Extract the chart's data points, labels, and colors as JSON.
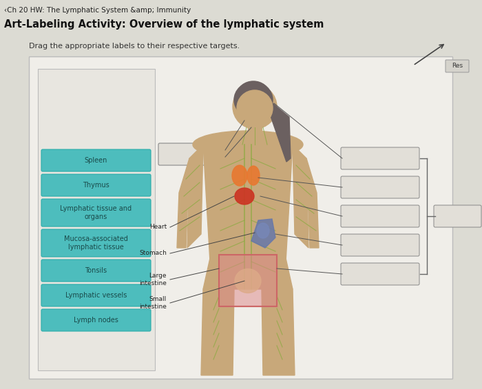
{
  "title_small": "‹Ch 20 HW: The Lymphatic System &amp; Immunity",
  "title_main": "Art-Labeling Activity: Overview of the lymphatic system",
  "instruction": "Drag the appropriate labels to their respective targets.",
  "bg_color": "#dcdbd3",
  "panel_bg": "#f0eee9",
  "inner_panel_bg": "#e8e6e0",
  "left_labels": [
    "Spleen",
    "Thymus",
    "Lymphatic tissue and\norgans",
    "Mucosa-associated\nlymphatic tissue",
    "Tonsils",
    "Lymphatic vessels",
    "Lymph nodes"
  ],
  "label_box_color": "#4dbdbd",
  "label_text_color": "#1a4a4a",
  "body_label_names": [
    "Heart",
    "Stomach",
    "Large\nintestine",
    "Small\nintestine"
  ],
  "reset_btn": "Res",
  "panel_outline": "#aaaaaa",
  "right_box_color": "#e2dfd8",
  "right_box_edge": "#888888"
}
